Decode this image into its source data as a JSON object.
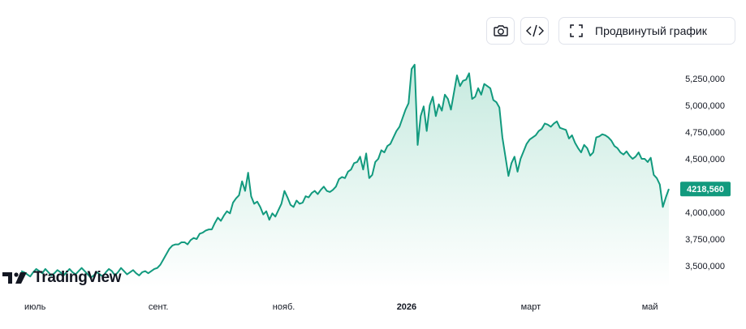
{
  "toolbar": {
    "snapshot_icon": "camera-icon",
    "embed_icon": "code-icon",
    "advanced_icon": "fullscreen-corners-icon",
    "advanced_label": "Продвинутый график"
  },
  "logo": {
    "text": "TradingView",
    "icon": "tradingview-logo-icon"
  },
  "colors": {
    "line": "#129a7e",
    "fill_top": "#c6eadf",
    "fill_bottom": "#ffffff",
    "price_tag": "#129a7e"
  },
  "chart_data": {
    "type": "area",
    "title": "",
    "xlabel": "",
    "ylabel": "",
    "x_ticks": [
      {
        "label": "июль",
        "index": 0
      },
      {
        "label": "сент.",
        "index": 41
      },
      {
        "label": "нояб.",
        "index": 82
      },
      {
        "label": "2026",
        "index": 123,
        "bold": true
      },
      {
        "label": "март",
        "index": 164
      },
      {
        "label": "май",
        "index": 204
      }
    ],
    "y_ticks": [
      3500000,
      3750000,
      4000000,
      4250000,
      4500000,
      4750000,
      5000000,
      5250000
    ],
    "y_tick_labels": [
      "3,500,000",
      "3,750,000",
      "4,000,000",
      "4,250,000",
      "4,500,000",
      "4,750,000",
      "5,000,000",
      "5,250,000"
    ],
    "ylim": [
      3300000,
      5450000
    ],
    "last_price": 4218560,
    "last_price_label": "4218,560",
    "grid": false,
    "values": [
      3450000,
      3440000,
      3420000,
      3400000,
      3440000,
      3470000,
      3450000,
      3430000,
      3470000,
      3440000,
      3410000,
      3430000,
      3460000,
      3440000,
      3410000,
      3440000,
      3470000,
      3440000,
      3420000,
      3450000,
      3480000,
      3450000,
      3420000,
      3390000,
      3410000,
      3440000,
      3420000,
      3400000,
      3440000,
      3470000,
      3450000,
      3410000,
      3440000,
      3480000,
      3450000,
      3420000,
      3440000,
      3460000,
      3430000,
      3410000,
      3440000,
      3450000,
      3430000,
      3450000,
      3470000,
      3480000,
      3510000,
      3560000,
      3610000,
      3660000,
      3690000,
      3700000,
      3700000,
      3720000,
      3720000,
      3700000,
      3740000,
      3760000,
      3750000,
      3800000,
      3810000,
      3830000,
      3840000,
      3840000,
      3900000,
      3950000,
      3920000,
      3970000,
      4010000,
      3990000,
      4090000,
      4130000,
      4160000,
      4290000,
      4200000,
      4370000,
      4150000,
      4080000,
      4100000,
      4050000,
      3980000,
      4010000,
      3930000,
      3990000,
      3960000,
      4020000,
      4080000,
      4200000,
      4140000,
      4070000,
      4050000,
      4110000,
      4080000,
      4090000,
      4150000,
      4140000,
      4180000,
      4200000,
      4170000,
      4210000,
      4240000,
      4200000,
      4190000,
      4210000,
      4240000,
      4310000,
      4330000,
      4320000,
      4380000,
      4400000,
      4460000,
      4470000,
      4520000,
      4400000,
      4550000,
      4320000,
      4350000,
      4470000,
      4500000,
      4580000,
      4560000,
      4620000,
      4640000,
      4700000,
      4760000,
      4800000,
      4880000,
      4960000,
      5020000,
      5340000,
      5380000,
      4630000,
      4900000,
      4990000,
      4760000,
      5000000,
      5080000,
      4900000,
      5010000,
      4950000,
      5100000,
      5060000,
      4960000,
      5120000,
      5280000,
      5180000,
      5230000,
      5240000,
      5300000,
      5060000,
      5080000,
      5160000,
      5100000,
      5200000,
      5180000,
      5160000,
      5050000,
      5030000,
      4980000,
      4700000,
      4520000,
      4340000,
      4460000,
      4520000,
      4380000,
      4500000,
      4570000,
      4640000,
      4680000,
      4700000,
      4720000,
      4760000,
      4780000,
      4830000,
      4820000,
      4800000,
      4830000,
      4850000,
      4790000,
      4780000,
      4770000,
      4690000,
      4720000,
      4650000,
      4600000,
      4560000,
      4630000,
      4600000,
      4530000,
      4560000,
      4700000,
      4710000,
      4730000,
      4720000,
      4700000,
      4670000,
      4620000,
      4600000,
      4560000,
      4540000,
      4570000,
      4530000,
      4500000,
      4520000,
      4560000,
      4500000,
      4500000,
      4470000,
      4510000,
      4350000,
      4320000,
      4260000,
      4050000,
      4140000,
      4218560
    ]
  }
}
